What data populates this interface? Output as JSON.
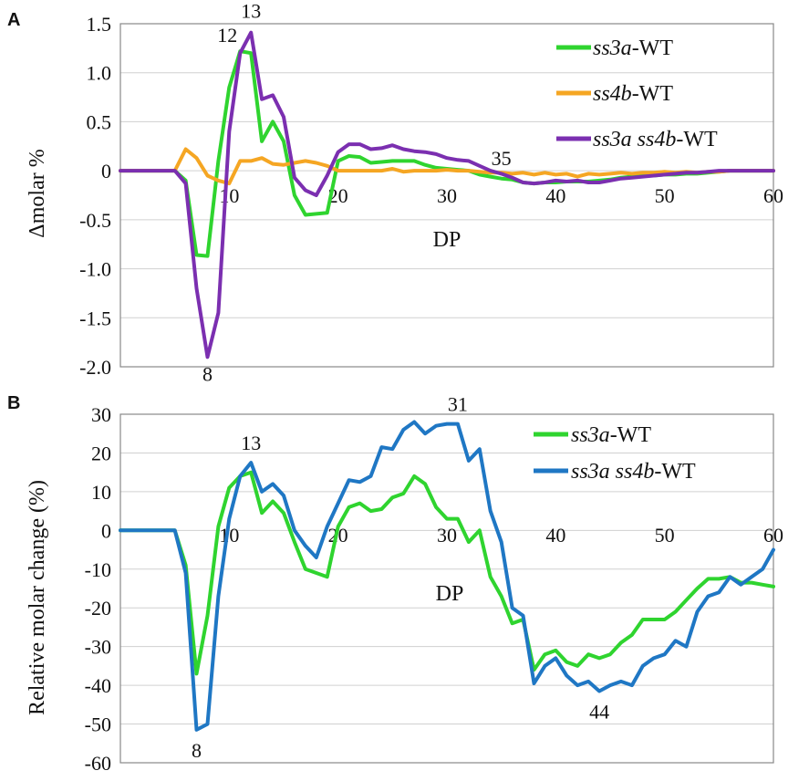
{
  "chart_data": [
    {
      "panel": "A",
      "type": "line",
      "ylabel": "Δmolar %",
      "xlabel": "DP",
      "xlim": [
        0,
        60
      ],
      "ylim": [
        -2.0,
        1.5
      ],
      "xticks": [
        10,
        20,
        30,
        40,
        50,
        60
      ],
      "xtick_labels": [
        "10",
        "20",
        "30",
        "40",
        "50",
        "60"
      ],
      "yticks": [
        1.5,
        1.0,
        0.5,
        0,
        -0.5,
        -1.0,
        -1.5,
        -2.0
      ],
      "ytick_labels": [
        "1.5",
        "1.0",
        "0.5",
        "0",
        "-0.5",
        "-1.0",
        "-1.5",
        "-2.0"
      ],
      "grid": true,
      "legend_position": "top-right",
      "series": [
        {
          "name": "ss3a-WT",
          "name_italic": "ss3a",
          "name_suffix": "-WT",
          "color": "#2fd42f",
          "x": [
            0,
            1,
            2,
            3,
            4,
            5,
            6,
            7,
            8,
            9,
            10,
            11,
            12,
            13,
            14,
            15,
            16,
            17,
            18,
            19,
            20,
            21,
            22,
            23,
            24,
            25,
            26,
            27,
            28,
            29,
            30,
            31,
            32,
            33,
            34,
            35,
            36,
            37,
            38,
            39,
            40,
            41,
            42,
            43,
            44,
            45,
            46,
            47,
            48,
            49,
            50,
            51,
            52,
            53,
            54,
            55,
            56,
            57,
            58,
            59,
            60
          ],
          "y": [
            0,
            0,
            0,
            0,
            0,
            0,
            -0.1,
            -0.86,
            -0.87,
            0.1,
            0.85,
            1.22,
            1.2,
            0.3,
            0.5,
            0.3,
            -0.25,
            -0.45,
            -0.44,
            -0.43,
            0.1,
            0.15,
            0.14,
            0.08,
            0.09,
            0.1,
            0.1,
            0.1,
            0.06,
            0.03,
            0.02,
            0.01,
            0.0,
            -0.04,
            -0.06,
            -0.08,
            -0.09,
            -0.12,
            -0.13,
            -0.12,
            -0.12,
            -0.11,
            -0.11,
            -0.11,
            -0.1,
            -0.09,
            -0.07,
            -0.06,
            -0.05,
            -0.05,
            -0.04,
            -0.04,
            -0.03,
            -0.03,
            -0.02,
            -0.01,
            0,
            0,
            0,
            0,
            0
          ]
        },
        {
          "name": "ss4b-WT",
          "name_italic": "ss4b",
          "name_suffix": "-WT",
          "color": "#f5a623",
          "x": [
            0,
            1,
            2,
            3,
            4,
            5,
            6,
            7,
            8,
            9,
            10,
            11,
            12,
            13,
            14,
            15,
            16,
            17,
            18,
            19,
            20,
            21,
            22,
            23,
            24,
            25,
            26,
            27,
            28,
            29,
            30,
            31,
            32,
            33,
            34,
            35,
            36,
            37,
            38,
            39,
            40,
            41,
            42,
            43,
            44,
            45,
            46,
            47,
            48,
            49,
            50,
            51,
            52,
            53,
            54,
            55,
            56,
            57,
            58,
            59,
            60
          ],
          "y": [
            0,
            0,
            0,
            0,
            0,
            0,
            0.22,
            0.13,
            -0.05,
            -0.1,
            -0.13,
            0.1,
            0.1,
            0.13,
            0.07,
            0.06,
            0.08,
            0.1,
            0.08,
            0.05,
            0.0,
            0.0,
            0.0,
            0.0,
            0.0,
            0.02,
            -0.01,
            0.0,
            0.0,
            0.0,
            0.01,
            0.0,
            0.0,
            -0.01,
            -0.02,
            -0.02,
            -0.03,
            -0.02,
            -0.04,
            -0.02,
            -0.04,
            -0.03,
            -0.06,
            -0.03,
            -0.04,
            -0.03,
            -0.02,
            -0.03,
            -0.02,
            -0.02,
            -0.01,
            -0.02,
            -0.01,
            -0.02,
            -0.01,
            -0.01,
            0,
            0,
            0,
            0,
            0
          ]
        },
        {
          "name": "ss3a ss4b-WT",
          "name_italic": "ss3a ss4b",
          "name_suffix": "-WT",
          "color": "#7b2fb0",
          "x": [
            0,
            1,
            2,
            3,
            4,
            5,
            6,
            7,
            8,
            9,
            10,
            11,
            12,
            13,
            14,
            15,
            16,
            17,
            18,
            19,
            20,
            21,
            22,
            23,
            24,
            25,
            26,
            27,
            28,
            29,
            30,
            31,
            32,
            33,
            34,
            35,
            36,
            37,
            38,
            39,
            40,
            41,
            42,
            43,
            44,
            45,
            46,
            47,
            48,
            49,
            50,
            51,
            52,
            53,
            54,
            55,
            56,
            57,
            58,
            59,
            60
          ],
          "y": [
            0,
            0,
            0,
            0,
            0,
            0,
            -0.13,
            -1.2,
            -1.9,
            -1.45,
            0.4,
            1.2,
            1.41,
            0.73,
            0.77,
            0.55,
            -0.07,
            -0.2,
            -0.25,
            -0.05,
            0.19,
            0.27,
            0.27,
            0.22,
            0.23,
            0.26,
            0.22,
            0.2,
            0.19,
            0.17,
            0.13,
            0.11,
            0.1,
            0.05,
            0.0,
            -0.03,
            -0.07,
            -0.12,
            -0.13,
            -0.12,
            -0.1,
            -0.11,
            -0.1,
            -0.12,
            -0.12,
            -0.1,
            -0.08,
            -0.07,
            -0.06,
            -0.05,
            -0.04,
            -0.03,
            -0.02,
            -0.02,
            -0.01,
            0,
            0,
            0,
            0,
            0,
            0
          ]
        }
      ],
      "annotations": [
        {
          "text": "13",
          "x": 12,
          "y": 1.41
        },
        {
          "text": "12",
          "x": 11,
          "y": 1.22
        },
        {
          "text": "35",
          "x": 35,
          "y": 0
        },
        {
          "text": "8",
          "x": 8,
          "y": -1.9
        }
      ]
    },
    {
      "panel": "B",
      "type": "line",
      "ylabel": "Relative molar change (%)",
      "xlabel": "DP",
      "xlim": [
        0,
        60
      ],
      "ylim": [
        -60,
        30
      ],
      "xticks": [
        10,
        20,
        30,
        40,
        50,
        60
      ],
      "xtick_labels": [
        "10",
        "20",
        "30",
        "40",
        "50",
        "60"
      ],
      "yticks": [
        30,
        20,
        10,
        0,
        -10,
        -20,
        -30,
        -40,
        -50,
        -60
      ],
      "ytick_labels": [
        "30",
        "20",
        "10",
        "0",
        "-10",
        "-20",
        "-30",
        "-40",
        "-50",
        "-60"
      ],
      "grid": true,
      "legend_position": "top-right",
      "series": [
        {
          "name": "ss3a-WT",
          "name_italic": "ss3a",
          "name_suffix": "-WT",
          "color": "#2fd42f",
          "x": [
            0,
            1,
            2,
            3,
            4,
            5,
            6,
            7,
            8,
            9,
            10,
            11,
            12,
            13,
            14,
            15,
            16,
            17,
            18,
            19,
            20,
            21,
            22,
            23,
            24,
            25,
            26,
            27,
            28,
            29,
            30,
            31,
            32,
            33,
            34,
            35,
            36,
            37,
            38,
            39,
            40,
            41,
            42,
            43,
            44,
            45,
            46,
            47,
            48,
            49,
            50,
            51,
            52,
            53,
            54,
            55,
            56,
            57,
            58,
            59,
            60
          ],
          "y": [
            0,
            0,
            0,
            0,
            0,
            0,
            -9,
            -37,
            -22,
            1,
            11,
            14,
            15,
            4.5,
            7.5,
            4.5,
            -3,
            -10,
            -11,
            -12,
            1,
            6,
            7,
            5,
            5.5,
            8.5,
            9.5,
            14,
            12,
            6,
            3,
            3,
            -3,
            0,
            -12,
            -17,
            -24,
            -23,
            -36,
            -32,
            -31,
            -34,
            -35,
            -32,
            -33,
            -32,
            -29,
            -27,
            -23,
            -23,
            -23,
            -21,
            -18,
            -15,
            -12.5,
            -12.5,
            -12,
            -13.5,
            -13.5,
            -14,
            -14.5
          ]
        },
        {
          "name": "ss3a ss4b-WT",
          "name_italic": "ss3a ss4b",
          "name_suffix": "-WT",
          "color": "#1f77c4",
          "x": [
            0,
            1,
            2,
            3,
            4,
            5,
            6,
            7,
            8,
            9,
            10,
            11,
            12,
            13,
            14,
            15,
            16,
            17,
            18,
            19,
            20,
            21,
            22,
            23,
            24,
            25,
            26,
            27,
            28,
            29,
            30,
            31,
            32,
            33,
            34,
            35,
            36,
            37,
            38,
            39,
            40,
            41,
            42,
            43,
            44,
            45,
            46,
            47,
            48,
            49,
            50,
            51,
            52,
            53,
            54,
            55,
            56,
            57,
            58,
            59,
            60
          ],
          "y": [
            0,
            0,
            0,
            0,
            0,
            0,
            -11,
            -51.5,
            -50,
            -17,
            3,
            14,
            17.5,
            10,
            12,
            9,
            0,
            -4,
            -7,
            1,
            7,
            13,
            12.5,
            14,
            21.5,
            21,
            26,
            28,
            25,
            27,
            27.5,
            27.5,
            18,
            21,
            5,
            -3,
            -20,
            -22,
            -39.5,
            -35,
            -33,
            -37.5,
            -40,
            -39,
            -41.5,
            -40,
            -39,
            -40,
            -35,
            -33,
            -32,
            -28.5,
            -30,
            -21,
            -17,
            -16,
            -12,
            -14,
            -12,
            -10,
            -5
          ]
        }
      ],
      "annotations": [
        {
          "text": "31",
          "x": 31,
          "y": 28
        },
        {
          "text": "13",
          "x": 12,
          "y": 17.5
        },
        {
          "text": "8",
          "x": 7,
          "y": -51.5
        },
        {
          "text": "44",
          "x": 44,
          "y": -41.5
        }
      ]
    }
  ]
}
